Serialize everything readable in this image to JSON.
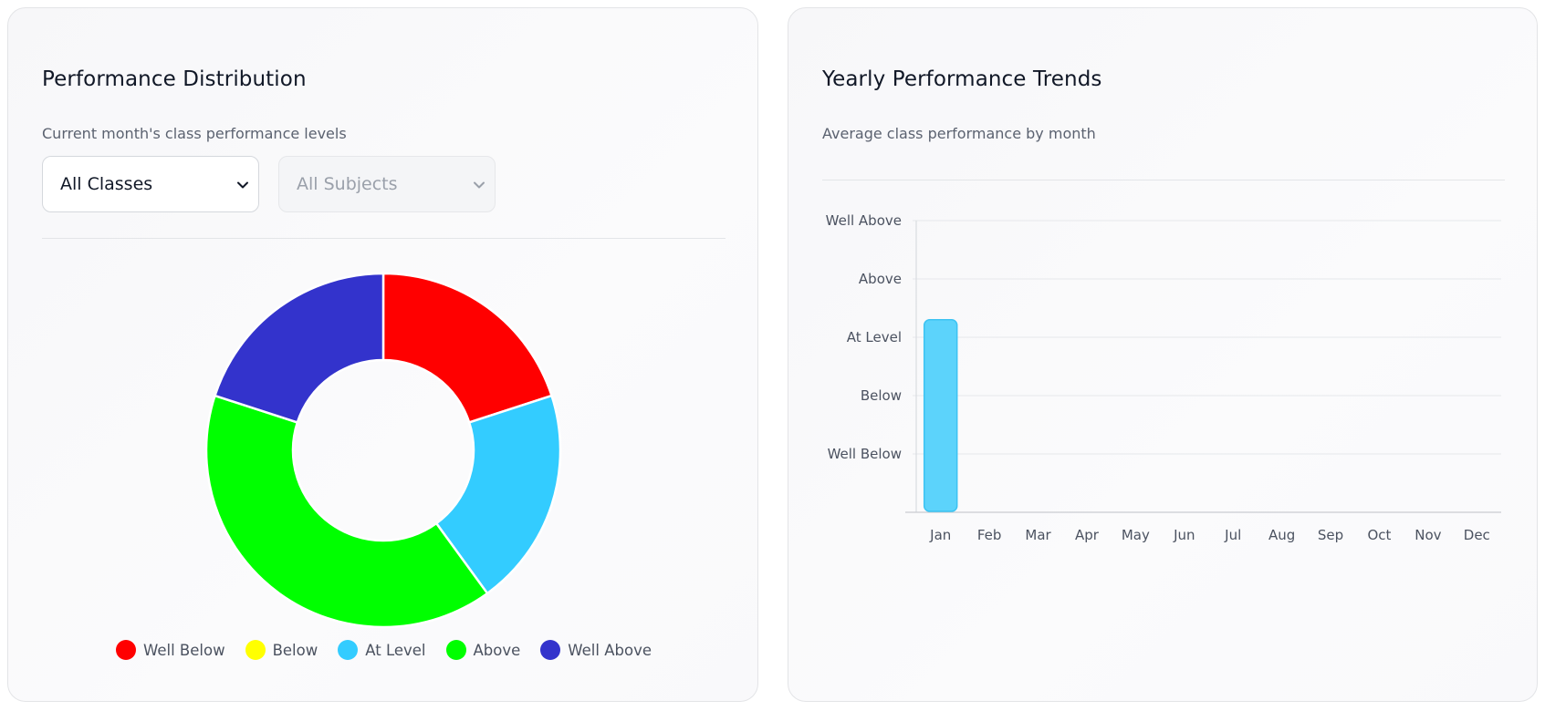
{
  "distribution": {
    "title": "Performance Distribution",
    "subtitle": "Current month's class performance levels",
    "class_select": {
      "value": "All Classes"
    },
    "subject_select": {
      "value": "All Subjects"
    }
  },
  "trends": {
    "title": "Yearly Performance Trends",
    "subtitle": "Average class performance by month"
  },
  "chart_data": [
    {
      "type": "pie",
      "subtype": "donut",
      "title": "Performance Distribution",
      "categories": [
        "Well Below",
        "Below",
        "At Level",
        "Above",
        "Well Above"
      ],
      "values": [
        1,
        0,
        1,
        2,
        1
      ],
      "colors": [
        "#ff0000",
        "#ffff00",
        "#33ccff",
        "#00ff00",
        "#3333cc"
      ],
      "legend_position": "bottom"
    },
    {
      "type": "bar",
      "title": "Yearly Performance Trends",
      "categories": [
        "Jan",
        "Feb",
        "Mar",
        "Apr",
        "May",
        "Jun",
        "Jul",
        "Aug",
        "Sep",
        "Oct",
        "Nov",
        "Dec"
      ],
      "values": [
        3.3,
        null,
        null,
        null,
        null,
        null,
        null,
        null,
        null,
        null,
        null,
        null
      ],
      "y_tick_labels": [
        "Well Below",
        "Below",
        "At Level",
        "Above",
        "Well Above"
      ],
      "y_tick_values": [
        1,
        2,
        3,
        4,
        5
      ],
      "ylim": [
        0,
        5
      ],
      "grid": true,
      "bar_color": "#5cd3fb"
    }
  ]
}
